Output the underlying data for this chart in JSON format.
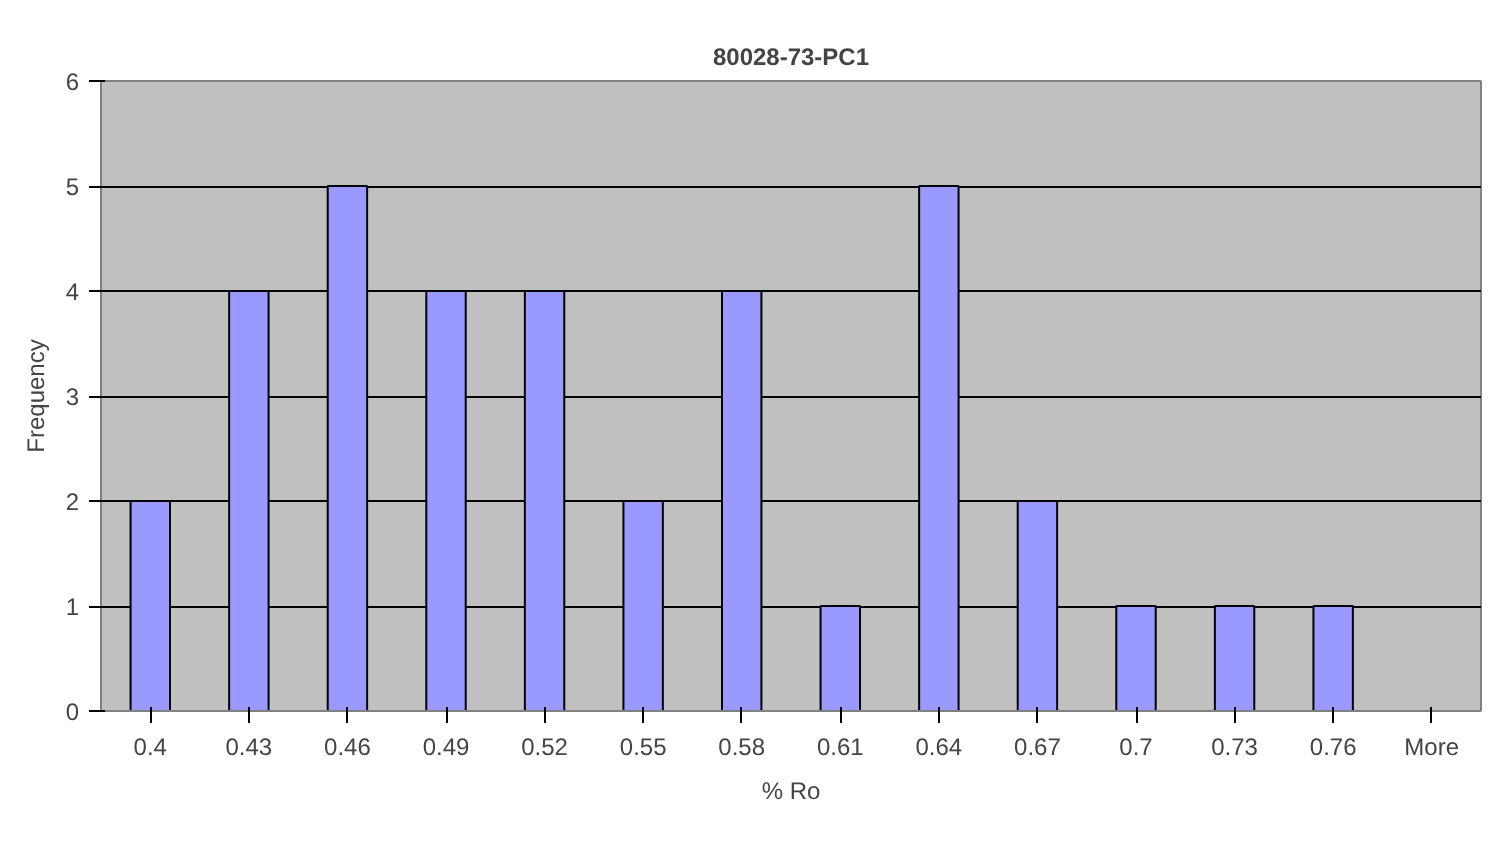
{
  "chart_data": {
    "type": "bar",
    "title": "80028-73-PC1",
    "xlabel": "% Ro",
    "ylabel": "Frequency",
    "categories": [
      "0.4",
      "0.43",
      "0.46",
      "0.49",
      "0.52",
      "0.55",
      "0.58",
      "0.61",
      "0.64",
      "0.67",
      "0.7",
      "0.73",
      "0.76",
      "More"
    ],
    "values": [
      2,
      4,
      5,
      4,
      4,
      2,
      4,
      1,
      5,
      2,
      1,
      1,
      1,
      0
    ],
    "color": "#9999ff",
    "ylim": [
      0,
      6
    ],
    "yticks": [
      0,
      1,
      2,
      3,
      4,
      5,
      6
    ],
    "grid": "y"
  }
}
